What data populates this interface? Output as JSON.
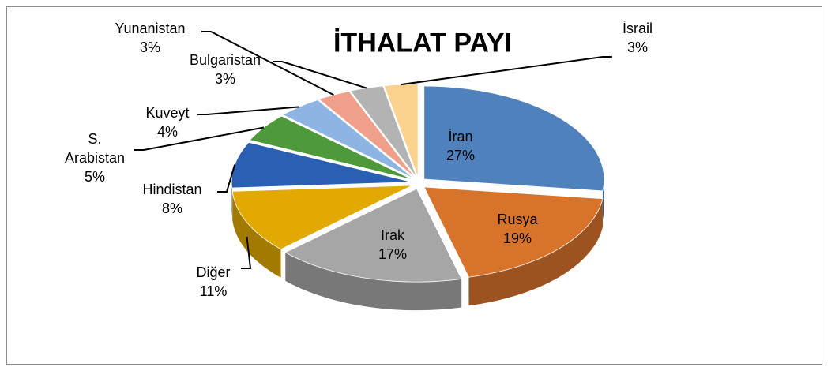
{
  "chart_data": {
    "type": "pie3d",
    "title": "İTHALAT PAYI",
    "categories": [
      "İran",
      "Rusya",
      "Irak",
      "Diğer",
      "Hindistan",
      "S. Arabistan",
      "Kuveyt",
      "Yunanistan",
      "Bulgaristan",
      "İsrail"
    ],
    "values": [
      27,
      19,
      17,
      11,
      8,
      5,
      4,
      3,
      3,
      3
    ],
    "value_labels": [
      "27%",
      "19%",
      "17%",
      "11%",
      "8%",
      "5%",
      "4%",
      "3%",
      "3%",
      "3%"
    ],
    "colors": [
      "#4f81bd",
      "#d8732c",
      "#a6a6a6",
      "#e2aa00",
      "#2b5fb4",
      "#4e9a3a",
      "#8db4e2",
      "#f0a08a",
      "#b3b3b3",
      "#fbd38e"
    ]
  }
}
